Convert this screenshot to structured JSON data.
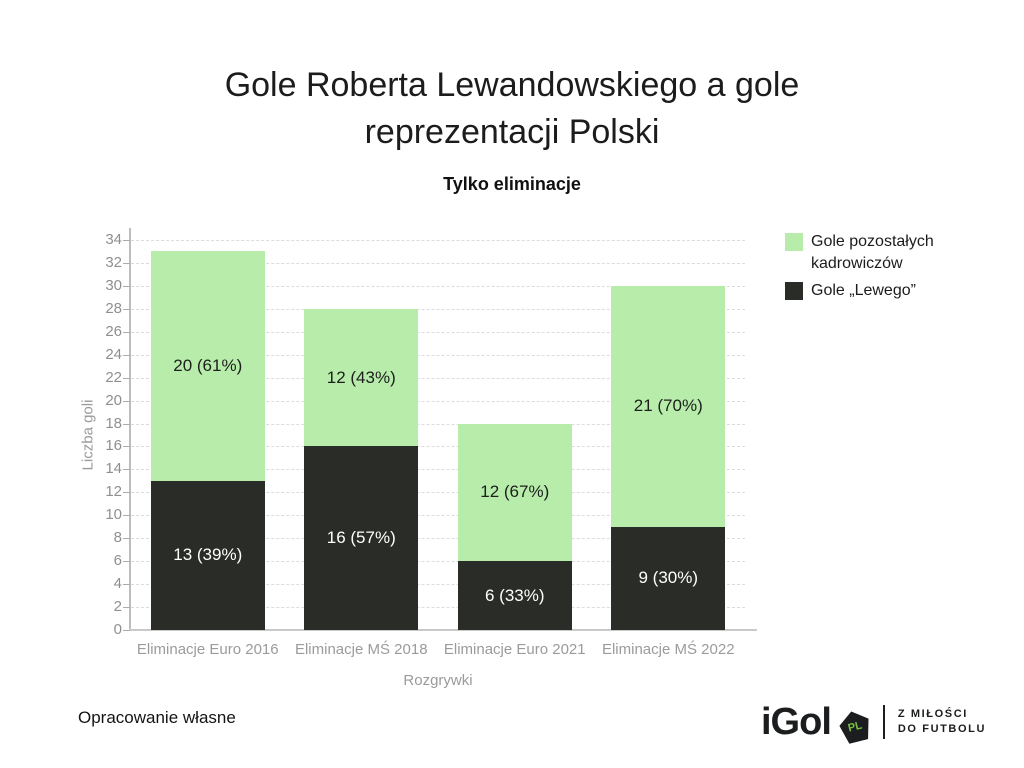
{
  "title": "Gole Roberta Lewandowskiego a gole reprezentacji Polski",
  "title_lines": [
    "Gole Roberta Lewandowskiego a gole",
    "reprezentacji Polski"
  ],
  "subtitle": "Tylko eliminacje",
  "source_note": "Opracowanie własne",
  "logo": {
    "word": "iGol",
    "badge": "PL",
    "badge_color": "#7ac143",
    "tagline_line1": "Z MIŁOŚCI",
    "tagline_line2": "DO FUTBOLU"
  },
  "legend": {
    "items": [
      {
        "label": "Gole pozostałych kadrowiczów",
        "color": "#b7ecab"
      },
      {
        "label": "Gole „Lewego”",
        "color": "#2a2d27"
      }
    ]
  },
  "chart_data": {
    "type": "bar",
    "stacked": true,
    "title": "Gole Roberta Lewandowskiego a gole reprezentacji Polski",
    "subtitle": "Tylko eliminacje",
    "categories": [
      "Eliminacje Euro 2016",
      "Eliminacje MŚ 2018",
      "Eliminacje Euro 2021",
      "Eliminacje MŚ 2022"
    ],
    "series": [
      {
        "name": "Gole „Lewego”",
        "color": "#2a2d27",
        "label_color": "#ffffff",
        "values": [
          13,
          16,
          6,
          9
        ],
        "labels": [
          "13 (39%)",
          "16 (57%)",
          "6 (33%)",
          "9 (30%)"
        ]
      },
      {
        "name": "Gole pozostałych kadrowiczów",
        "color": "#b7ecab",
        "label_color": "#1d1f1c",
        "values": [
          20,
          12,
          12,
          21
        ],
        "labels": [
          "20 (61%)",
          "12 (43%)",
          "12 (67%)",
          "21 (70%)"
        ]
      }
    ],
    "totals": [
      33,
      28,
      18,
      30
    ],
    "xlabel": "Rozgrywki",
    "ylabel": "Liczba goli",
    "ylim": [
      0,
      34
    ],
    "ytick_step": 2,
    "grid": "horizontal-dashed",
    "legend_position": "right-top"
  }
}
